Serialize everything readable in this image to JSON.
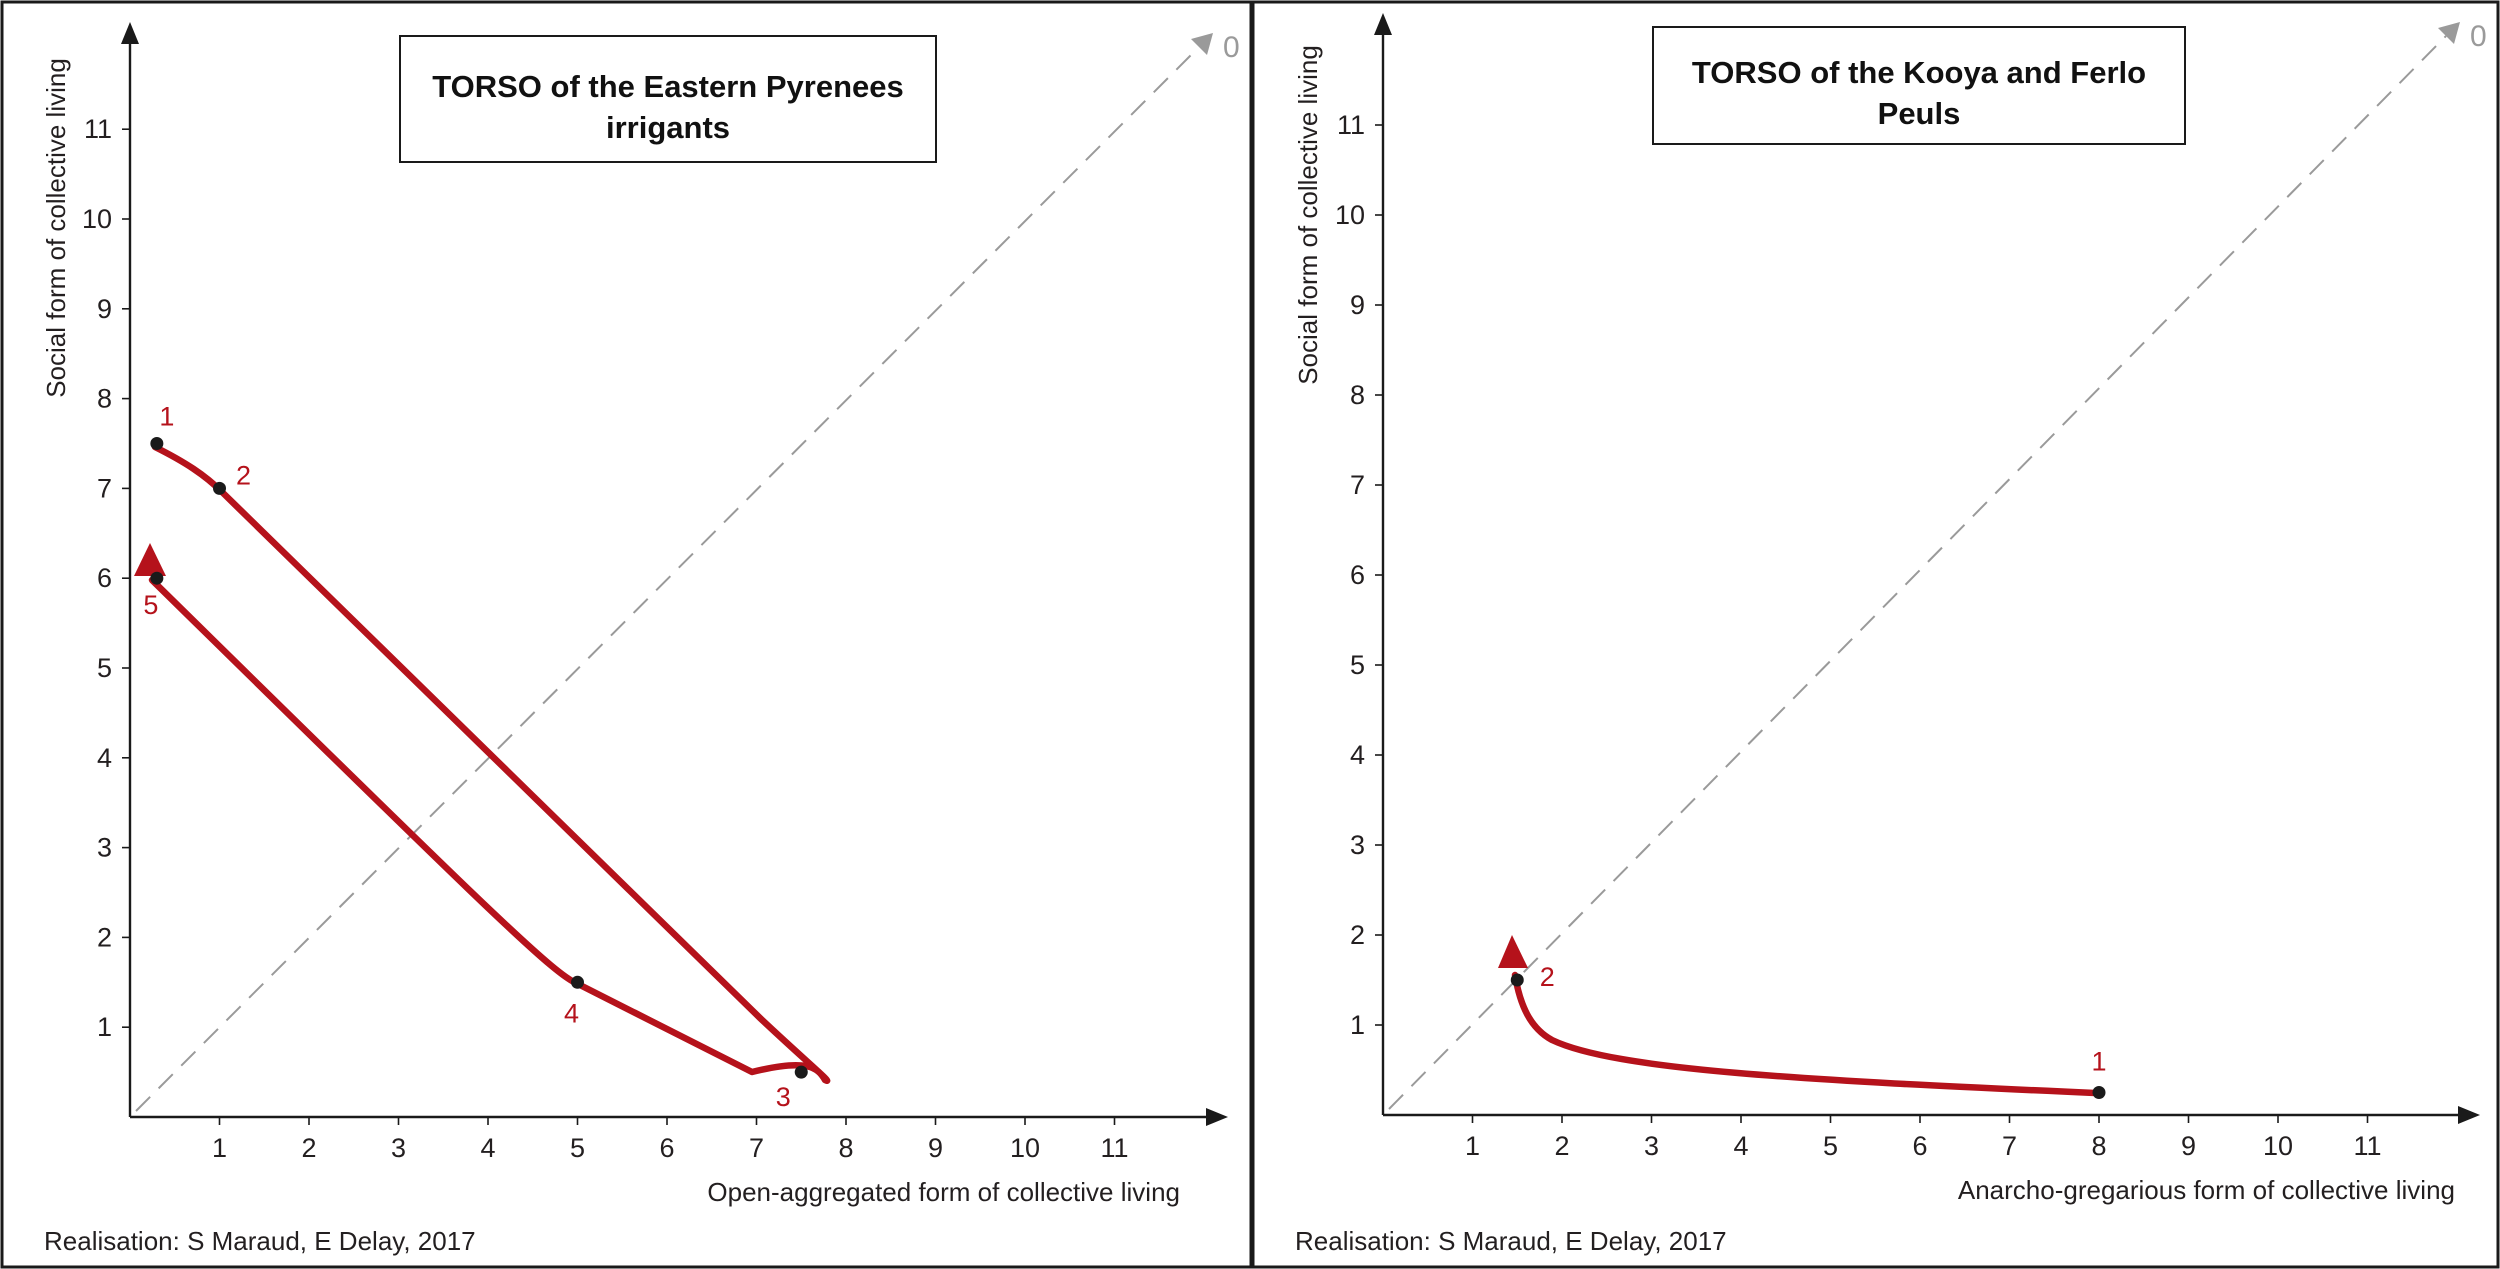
{
  "colors": {
    "trajectory": "#b5121b",
    "diagonal": "#9a9a9a",
    "axis": "#1a1a1a"
  },
  "chart_data": [
    {
      "type": "line",
      "title": "TORSO of the Eastern Pyrenees irrigants",
      "title_lines": [
        "TORSO of the Eastern Pyrenees",
        "irrigants"
      ],
      "xlabel": "Open-aggregated form of collective living",
      "ylabel": "Social form of collective living",
      "x_ticks": [
        "1",
        "2",
        "3",
        "4",
        "5",
        "6",
        "7",
        "8",
        "9",
        "10",
        "11"
      ],
      "y_ticks": [
        "1",
        "2",
        "3",
        "4",
        "5",
        "6",
        "7",
        "8",
        "9",
        "10",
        "11"
      ],
      "xlim": [
        0,
        12
      ],
      "ylim": [
        0,
        12
      ],
      "grid": false,
      "diagonal_label": "0",
      "points": [
        {
          "label": "1",
          "x": 0.3,
          "y": 7.5
        },
        {
          "label": "2",
          "x": 1.0,
          "y": 7.0
        },
        {
          "label": "3",
          "x": 7.5,
          "y": 0.5
        },
        {
          "label": "4",
          "x": 5.0,
          "y": 1.5
        },
        {
          "label": "5",
          "x": 0.3,
          "y": 6.0
        }
      ],
      "credit": "Realisation: S Maraud, E Delay, 2017"
    },
    {
      "type": "line",
      "title": "TORSO of the Kooya and Ferlo Peuls",
      "title_lines": [
        "TORSO of the Kooya and Ferlo",
        "Peuls"
      ],
      "xlabel": "Anarcho-gregarious form of collective living",
      "ylabel": "Social form of collective living",
      "x_ticks": [
        "1",
        "2",
        "3",
        "4",
        "5",
        "6",
        "7",
        "8",
        "9",
        "10",
        "11"
      ],
      "y_ticks": [
        "1",
        "2",
        "3",
        "4",
        "5",
        "6",
        "7",
        "8",
        "9",
        "10",
        "11"
      ],
      "xlim": [
        0,
        12
      ],
      "ylim": [
        0,
        12
      ],
      "grid": false,
      "diagonal_label": "0",
      "points": [
        {
          "label": "1",
          "x": 8.0,
          "y": 0.25
        },
        {
          "label": "2",
          "x": 1.5,
          "y": 1.5
        }
      ],
      "credit": "Realisation: S Maraud, E Delay, 2017"
    }
  ]
}
